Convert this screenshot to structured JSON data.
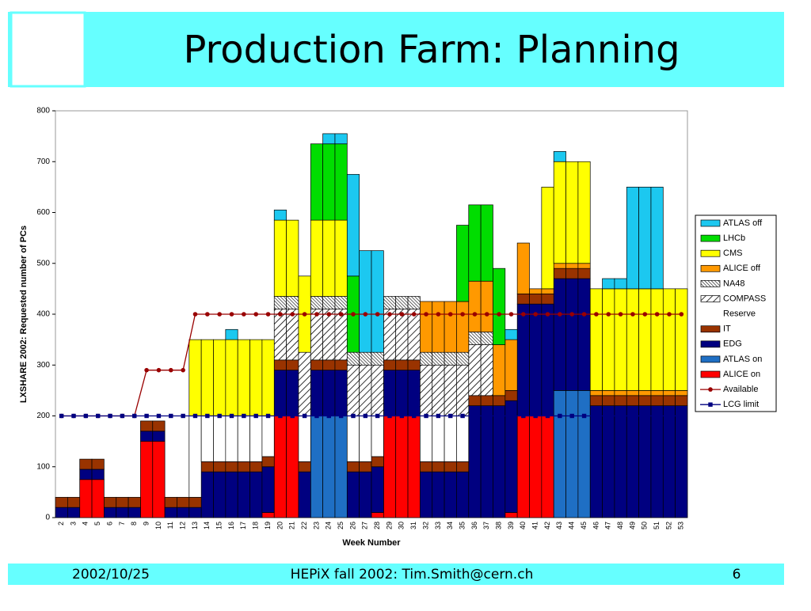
{
  "header": {
    "title": "Production Farm: Planning"
  },
  "footer": {
    "date": "2002/10/25",
    "center": "HEPiX fall 2002: Tim.Smith@cern.ch",
    "page": "6"
  },
  "chart_data": {
    "type": "bar",
    "stacked": true,
    "x_label": "Week Number",
    "y_label": "LXSHARE 2002: Requested number of PCs",
    "categories": [
      "2",
      "3",
      "4",
      "5",
      "6",
      "7",
      "8",
      "9",
      "10",
      "11",
      "12",
      "13",
      "14",
      "15",
      "16",
      "17",
      "18",
      "19",
      "20",
      "21",
      "22",
      "23",
      "24",
      "25",
      "26",
      "27",
      "28",
      "29",
      "30",
      "31",
      "32",
      "33",
      "34",
      "35",
      "36",
      "37",
      "38",
      "39",
      "40",
      "41",
      "42",
      "43",
      "44",
      "45",
      "46",
      "47",
      "48",
      "49",
      "50",
      "51",
      "52",
      "53"
    ],
    "ylim": [
      0,
      800
    ],
    "yticks": [
      0,
      100,
      200,
      300,
      400,
      500,
      600,
      700,
      800
    ],
    "grid": false,
    "legend": "right",
    "series": [
      {
        "name": "ALICE on",
        "color": "#ff0000",
        "values": [
          0,
          0,
          75,
          75,
          0,
          0,
          0,
          150,
          150,
          0,
          0,
          0,
          0,
          0,
          0,
          0,
          0,
          10,
          200,
          200,
          0,
          0,
          0,
          0,
          0,
          0,
          10,
          200,
          200,
          200,
          0,
          0,
          0,
          0,
          0,
          0,
          0,
          10,
          200,
          200,
          200,
          0,
          0,
          0,
          0,
          0,
          0,
          0,
          0,
          0,
          0,
          0
        ]
      },
      {
        "name": "ATLAS on",
        "color": "#1f6fc4",
        "values": [
          0,
          0,
          0,
          0,
          0,
          0,
          0,
          0,
          0,
          0,
          0,
          0,
          0,
          0,
          0,
          0,
          0,
          0,
          0,
          0,
          0,
          200,
          200,
          200,
          0,
          0,
          0,
          0,
          0,
          0,
          0,
          0,
          0,
          0,
          0,
          0,
          0,
          0,
          0,
          0,
          0,
          250,
          250,
          250,
          0,
          0,
          0,
          0,
          0,
          0,
          0,
          0
        ]
      },
      {
        "name": "EDG",
        "color": "#000080",
        "values": [
          20,
          20,
          20,
          20,
          20,
          20,
          20,
          20,
          20,
          20,
          20,
          20,
          90,
          90,
          90,
          90,
          90,
          90,
          90,
          90,
          90,
          90,
          90,
          90,
          90,
          90,
          90,
          90,
          90,
          90,
          90,
          90,
          90,
          90,
          220,
          220,
          220,
          220,
          220,
          220,
          220,
          220,
          220,
          220,
          220,
          220,
          220,
          220,
          220,
          220,
          220,
          220
        ]
      },
      {
        "name": "IT",
        "color": "#993300",
        "values": [
          20,
          20,
          20,
          20,
          20,
          20,
          20,
          20,
          20,
          20,
          20,
          20,
          20,
          20,
          20,
          20,
          20,
          20,
          20,
          20,
          20,
          20,
          20,
          20,
          20,
          20,
          20,
          20,
          20,
          20,
          20,
          20,
          20,
          20,
          20,
          20,
          20,
          20,
          20,
          20,
          20,
          20,
          20,
          20,
          20,
          20,
          20,
          20,
          20,
          20,
          20,
          20
        ]
      },
      {
        "name": "Reserve",
        "color": "#ffffff",
        "values": [
          0,
          0,
          0,
          0,
          0,
          0,
          0,
          0,
          0,
          0,
          0,
          160,
          90,
          90,
          90,
          90,
          90,
          80,
          0,
          0,
          90,
          0,
          0,
          0,
          90,
          90,
          80,
          0,
          0,
          0,
          90,
          90,
          90,
          90,
          0,
          0,
          0,
          0,
          0,
          0,
          0,
          0,
          0,
          0,
          0,
          0,
          0,
          0,
          0,
          0,
          0,
          0
        ]
      },
      {
        "name": "COMPASS",
        "color": "#000000",
        "values": [
          0,
          0,
          0,
          0,
          0,
          0,
          0,
          0,
          0,
          0,
          0,
          0,
          0,
          0,
          0,
          0,
          0,
          0,
          100,
          100,
          125,
          100,
          100,
          100,
          100,
          100,
          100,
          100,
          100,
          100,
          100,
          100,
          100,
          100,
          100,
          100,
          0,
          0,
          0,
          0,
          0,
          0,
          0,
          0,
          0,
          0,
          0,
          0,
          0,
          0,
          0,
          0
        ]
      },
      {
        "name": "NA48",
        "color": "#000000",
        "values": [
          0,
          0,
          0,
          0,
          0,
          0,
          0,
          0,
          0,
          0,
          0,
          0,
          0,
          0,
          0,
          0,
          0,
          0,
          25,
          25,
          0,
          25,
          25,
          25,
          25,
          25,
          25,
          25,
          25,
          25,
          25,
          25,
          25,
          25,
          25,
          25,
          0,
          0,
          0,
          0,
          0,
          0,
          0,
          0,
          0,
          0,
          0,
          0,
          0,
          0,
          0,
          0
        ]
      },
      {
        "name": "ALICE off",
        "color": "#ff9900",
        "values": [
          0,
          0,
          0,
          0,
          0,
          0,
          0,
          0,
          0,
          0,
          0,
          0,
          0,
          0,
          0,
          0,
          0,
          0,
          0,
          0,
          0,
          0,
          0,
          0,
          0,
          0,
          0,
          0,
          0,
          0,
          100,
          100,
          100,
          100,
          100,
          100,
          100,
          100,
          100,
          10,
          10,
          10,
          10,
          10,
          10,
          10,
          10,
          10,
          10,
          10,
          10,
          10
        ]
      },
      {
        "name": "CMS",
        "color": "#ffff00",
        "values": [
          0,
          0,
          0,
          0,
          0,
          0,
          0,
          0,
          0,
          0,
          0,
          150,
          150,
          150,
          150,
          150,
          150,
          150,
          150,
          150,
          150,
          150,
          150,
          150,
          0,
          0,
          0,
          0,
          0,
          0,
          0,
          0,
          0,
          0,
          0,
          0,
          0,
          0,
          0,
          0,
          200,
          200,
          200,
          200,
          200,
          200,
          200,
          200,
          200,
          200,
          200,
          200
        ]
      },
      {
        "name": "LHCb",
        "color": "#00dd00",
        "values": [
          0,
          0,
          0,
          0,
          0,
          0,
          0,
          0,
          0,
          0,
          0,
          0,
          0,
          0,
          0,
          0,
          0,
          0,
          0,
          0,
          0,
          150,
          150,
          150,
          150,
          0,
          0,
          0,
          0,
          0,
          0,
          0,
          0,
          150,
          150,
          150,
          150,
          0,
          0,
          0,
          0,
          0,
          0,
          0,
          0,
          0,
          0,
          0,
          0,
          0,
          0,
          0
        ]
      },
      {
        "name": "ATLAS off",
        "color": "#1cc8f0",
        "values": [
          0,
          0,
          0,
          0,
          0,
          0,
          0,
          0,
          0,
          0,
          0,
          0,
          0,
          0,
          20,
          0,
          0,
          0,
          20,
          0,
          0,
          0,
          20,
          20,
          200,
          200,
          200,
          0,
          0,
          0,
          0,
          0,
          0,
          0,
          0,
          0,
          0,
          20,
          0,
          0,
          0,
          20,
          0,
          0,
          0,
          20,
          20,
          200,
          200,
          200,
          0,
          0
        ]
      },
      {
        "name": "Available",
        "type": "line",
        "color": "#990000",
        "values": [
          200,
          200,
          200,
          200,
          200,
          200,
          200,
          290,
          290,
          290,
          290,
          400,
          400,
          400,
          400,
          400,
          400,
          400,
          400,
          400,
          400,
          400,
          400,
          400,
          400,
          400,
          400,
          400,
          400,
          400,
          400,
          400,
          400,
          400,
          400,
          400,
          400,
          400,
          400,
          400,
          400,
          400,
          400,
          400,
          400,
          400,
          400,
          400,
          400,
          400,
          400,
          400
        ]
      },
      {
        "name": "LCG limit",
        "type": "line",
        "color": "#000080",
        "values": [
          200,
          200,
          200,
          200,
          200,
          200,
          200,
          200,
          200,
          200,
          200,
          200,
          200,
          200,
          200,
          200,
          200,
          200,
          200,
          200,
          200,
          200,
          200,
          200,
          200,
          200,
          200,
          200,
          200,
          200,
          200,
          200,
          200,
          200,
          200,
          200,
          200,
          200,
          200,
          200,
          200,
          200,
          200,
          200,
          200,
          200,
          200,
          200,
          200,
          200,
          200,
          200
        ]
      }
    ]
  }
}
